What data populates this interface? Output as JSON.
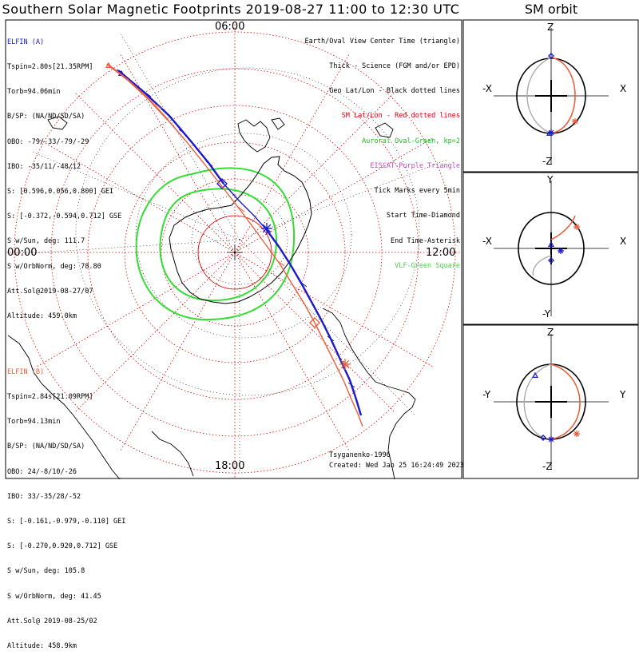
{
  "title": "Southern Solar Magnetic Footprints 2019-08-27 11:00 to 12:30 UTC",
  "orbit_title": "SM orbit",
  "time_labels": {
    "top": "06:00",
    "left": "00:00",
    "right": "12:00",
    "bottom": "18:00"
  },
  "probe_a": {
    "name": "ELFIN (A)",
    "color": "#1a1acc",
    "lines": [
      "Tspin=2.80s[21.35RPM]",
      "Torb=94.06min",
      "B/SP: (NA/ND/SD/SA)",
      "OBO: -79/-33/-79/-29",
      "IBO: -35/11/-48/12",
      "S: [0.596,0.056,0.800] GEI",
      "S: [-0.372,-0.594,0.712] GSE",
      "S w/Sun, deg: 111.7",
      "S w/OrbNorm, deg: 78.80",
      "Att.Sol@2019-08-27/07",
      "Altitude: 459.0km"
    ]
  },
  "probe_b": {
    "name": "ELFIN (B)",
    "color": "#e8603c",
    "lines": [
      "Tspin=2.84s[21.09RPM]",
      "Torb=94.13min",
      "B/SP: (NA/ND/SD/SA)",
      "OBO: 24/-8/10/-26",
      "IBO: 33/-35/28/-52",
      "S: [-0.161,-0.979,-0.110] GEI",
      "S: [-0.270,0.920,0.712] GSE",
      "S w/Sun, deg: 105.8",
      "S w/OrbNorm, deg: 41.45",
      "Att.Sol@ 2019-08-25/02",
      "Altitude: 458.9km"
    ]
  },
  "legend": [
    {
      "text": "Earth/Oval View Center Time (triangle)",
      "color": "#000000"
    },
    {
      "text": "Thick - Science (FGM and/or EPD)",
      "color": "#000000"
    },
    {
      "text": "Geo Lat/Lon - Black dotted lines",
      "color": "#000000"
    },
    {
      "text": "SM Lat/Lon - Red dotted lines",
      "color": "#e00000"
    },
    {
      "text": "Auroral Oval-Green, kp=2",
      "color": "#22bb22"
    },
    {
      "text": "EISCAT-Purple Triangle",
      "color": "#cc44cc"
    },
    {
      "text": "Tick Marks every 5min",
      "color": "#000000"
    },
    {
      "text": "Start Time-Diamond",
      "color": "#000000"
    },
    {
      "text": "End Time-Asterisk",
      "color": "#000000"
    },
    {
      "text": "VLF-Green Square",
      "color": "#55cc55"
    }
  ],
  "credit": {
    "author": "Tsyganenko-1996",
    "created": "Created: Wed Jan 25 16:24:49 2023"
  },
  "orbit_panels": [
    {
      "top": "Z",
      "bottom": "-Z",
      "left": "-X",
      "right": "X"
    },
    {
      "top": "Y",
      "bottom": "-Y",
      "left": "-X",
      "right": "X"
    },
    {
      "top": "Z",
      "bottom": "-Z",
      "left": "-Y",
      "right": "Y"
    }
  ],
  "colors": {
    "track_a": "#1a1acc",
    "track_b": "#e8603c",
    "grid_sm": "#e00000",
    "oval": "#33dd33",
    "coast": "#000000"
  }
}
